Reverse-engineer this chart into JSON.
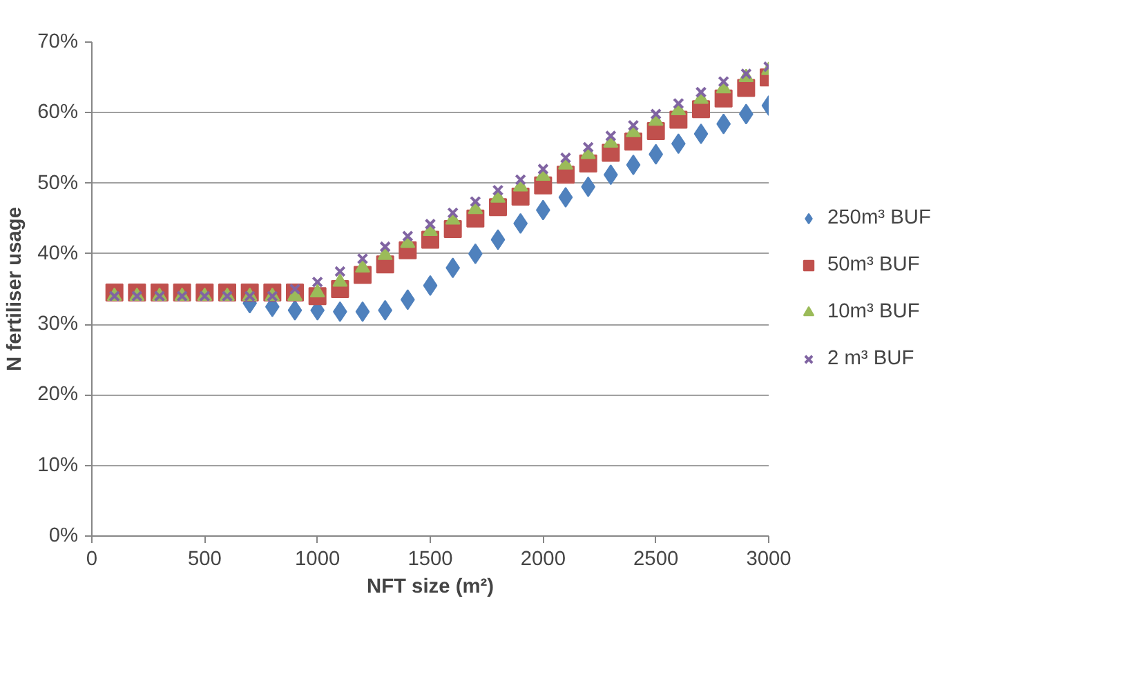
{
  "chart_data": {
    "type": "scatter",
    "xlabel": "NFT size (m²)",
    "ylabel": "N fertiliser usage",
    "x": [
      100,
      200,
      300,
      400,
      500,
      600,
      700,
      800,
      900,
      1000,
      1100,
      1200,
      1300,
      1400,
      1500,
      1600,
      1700,
      1800,
      1900,
      2000,
      2100,
      2200,
      2300,
      2400,
      2500,
      2600,
      2700,
      2800,
      2900,
      3000
    ],
    "series": [
      {
        "name": "250m³ BUF",
        "color": "#4f81bd",
        "marker": "diamond",
        "values": [
          null,
          null,
          null,
          null,
          null,
          null,
          33,
          32.5,
          32,
          32,
          31.8,
          31.8,
          32,
          33.5,
          35.5,
          38,
          40,
          42,
          44.3,
          46.2,
          48,
          49.5,
          51.2,
          52.6,
          54.1,
          55.6,
          57,
          58.4,
          59.8,
          61
        ]
      },
      {
        "name": "50m³ BUF",
        "color": "#c0504d",
        "marker": "square",
        "values": [
          34.5,
          34.5,
          34.5,
          34.5,
          34.5,
          34.5,
          34.5,
          34.5,
          34.5,
          34,
          35,
          37,
          38.5,
          40.5,
          42,
          43.5,
          45,
          46.6,
          48.1,
          49.7,
          51.2,
          52.8,
          54.3,
          55.9,
          57.4,
          59,
          60.5,
          62,
          63.5,
          65
        ]
      },
      {
        "name": "10m³ BUF",
        "color": "#9bbb59",
        "marker": "triangle",
        "values": [
          34,
          34,
          34,
          34,
          34,
          34,
          34,
          34,
          34,
          34.5,
          36,
          38,
          39.8,
          41.5,
          43.2,
          44.8,
          46.3,
          47.9,
          49.5,
          51,
          52.6,
          54.1,
          55.7,
          57.2,
          58.8,
          60.3,
          61.9,
          63.4,
          65,
          66
        ]
      },
      {
        "name": "2 m³ BUF",
        "color": "#8064a2",
        "marker": "cross",
        "values": [
          34,
          34,
          34,
          34,
          34,
          34,
          34,
          34,
          35,
          36,
          37.5,
          39.3,
          41,
          42.5,
          44.2,
          45.8,
          47.4,
          49,
          50.5,
          52,
          53.6,
          55.1,
          56.7,
          58.2,
          59.8,
          61.3,
          62.9,
          64.4,
          65.5,
          66.5
        ]
      }
    ],
    "xlim": [
      0,
      3000
    ],
    "xticks": [
      0,
      500,
      1000,
      1500,
      2000,
      2500,
      3000
    ],
    "ylim": [
      0,
      70
    ],
    "yticks": [
      {
        "value": 0,
        "label": "0%"
      },
      {
        "value": 10,
        "label": "10%"
      },
      {
        "value": 20,
        "label": "20%"
      },
      {
        "value": 30,
        "label": "30%"
      },
      {
        "value": 40,
        "label": "40%"
      },
      {
        "value": 50,
        "label": "50%"
      },
      {
        "value": 60,
        "label": "60%"
      },
      {
        "value": 70,
        "label": "70%"
      }
    ],
    "grid": "y",
    "legend": "right"
  }
}
